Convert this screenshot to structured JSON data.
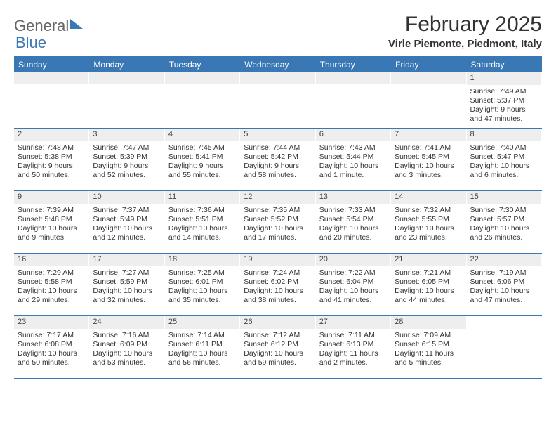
{
  "logo": {
    "part1": "General",
    "part2": "Blue"
  },
  "title": "February 2025",
  "location": "Virle Piemonte, Piedmont, Italy",
  "weekdays": [
    "Sunday",
    "Monday",
    "Tuesday",
    "Wednesday",
    "Thursday",
    "Friday",
    "Saturday"
  ],
  "colors": {
    "accent": "#3a78b5",
    "daynum_bg": "#eeeeee",
    "text": "#333333"
  },
  "weeks": [
    [
      {
        "empty": true
      },
      {
        "empty": true
      },
      {
        "empty": true
      },
      {
        "empty": true
      },
      {
        "empty": true
      },
      {
        "empty": true
      },
      {
        "day": "1",
        "sunrise": "Sunrise: 7:49 AM",
        "sunset": "Sunset: 5:37 PM",
        "daylight1": "Daylight: 9 hours",
        "daylight2": "and 47 minutes."
      }
    ],
    [
      {
        "day": "2",
        "sunrise": "Sunrise: 7:48 AM",
        "sunset": "Sunset: 5:38 PM",
        "daylight1": "Daylight: 9 hours",
        "daylight2": "and 50 minutes."
      },
      {
        "day": "3",
        "sunrise": "Sunrise: 7:47 AM",
        "sunset": "Sunset: 5:39 PM",
        "daylight1": "Daylight: 9 hours",
        "daylight2": "and 52 minutes."
      },
      {
        "day": "4",
        "sunrise": "Sunrise: 7:45 AM",
        "sunset": "Sunset: 5:41 PM",
        "daylight1": "Daylight: 9 hours",
        "daylight2": "and 55 minutes."
      },
      {
        "day": "5",
        "sunrise": "Sunrise: 7:44 AM",
        "sunset": "Sunset: 5:42 PM",
        "daylight1": "Daylight: 9 hours",
        "daylight2": "and 58 minutes."
      },
      {
        "day": "6",
        "sunrise": "Sunrise: 7:43 AM",
        "sunset": "Sunset: 5:44 PM",
        "daylight1": "Daylight: 10 hours",
        "daylight2": "and 1 minute."
      },
      {
        "day": "7",
        "sunrise": "Sunrise: 7:41 AM",
        "sunset": "Sunset: 5:45 PM",
        "daylight1": "Daylight: 10 hours",
        "daylight2": "and 3 minutes."
      },
      {
        "day": "8",
        "sunrise": "Sunrise: 7:40 AM",
        "sunset": "Sunset: 5:47 PM",
        "daylight1": "Daylight: 10 hours",
        "daylight2": "and 6 minutes."
      }
    ],
    [
      {
        "day": "9",
        "sunrise": "Sunrise: 7:39 AM",
        "sunset": "Sunset: 5:48 PM",
        "daylight1": "Daylight: 10 hours",
        "daylight2": "and 9 minutes."
      },
      {
        "day": "10",
        "sunrise": "Sunrise: 7:37 AM",
        "sunset": "Sunset: 5:49 PM",
        "daylight1": "Daylight: 10 hours",
        "daylight2": "and 12 minutes."
      },
      {
        "day": "11",
        "sunrise": "Sunrise: 7:36 AM",
        "sunset": "Sunset: 5:51 PM",
        "daylight1": "Daylight: 10 hours",
        "daylight2": "and 14 minutes."
      },
      {
        "day": "12",
        "sunrise": "Sunrise: 7:35 AM",
        "sunset": "Sunset: 5:52 PM",
        "daylight1": "Daylight: 10 hours",
        "daylight2": "and 17 minutes."
      },
      {
        "day": "13",
        "sunrise": "Sunrise: 7:33 AM",
        "sunset": "Sunset: 5:54 PM",
        "daylight1": "Daylight: 10 hours",
        "daylight2": "and 20 minutes."
      },
      {
        "day": "14",
        "sunrise": "Sunrise: 7:32 AM",
        "sunset": "Sunset: 5:55 PM",
        "daylight1": "Daylight: 10 hours",
        "daylight2": "and 23 minutes."
      },
      {
        "day": "15",
        "sunrise": "Sunrise: 7:30 AM",
        "sunset": "Sunset: 5:57 PM",
        "daylight1": "Daylight: 10 hours",
        "daylight2": "and 26 minutes."
      }
    ],
    [
      {
        "day": "16",
        "sunrise": "Sunrise: 7:29 AM",
        "sunset": "Sunset: 5:58 PM",
        "daylight1": "Daylight: 10 hours",
        "daylight2": "and 29 minutes."
      },
      {
        "day": "17",
        "sunrise": "Sunrise: 7:27 AM",
        "sunset": "Sunset: 5:59 PM",
        "daylight1": "Daylight: 10 hours",
        "daylight2": "and 32 minutes."
      },
      {
        "day": "18",
        "sunrise": "Sunrise: 7:25 AM",
        "sunset": "Sunset: 6:01 PM",
        "daylight1": "Daylight: 10 hours",
        "daylight2": "and 35 minutes."
      },
      {
        "day": "19",
        "sunrise": "Sunrise: 7:24 AM",
        "sunset": "Sunset: 6:02 PM",
        "daylight1": "Daylight: 10 hours",
        "daylight2": "and 38 minutes."
      },
      {
        "day": "20",
        "sunrise": "Sunrise: 7:22 AM",
        "sunset": "Sunset: 6:04 PM",
        "daylight1": "Daylight: 10 hours",
        "daylight2": "and 41 minutes."
      },
      {
        "day": "21",
        "sunrise": "Sunrise: 7:21 AM",
        "sunset": "Sunset: 6:05 PM",
        "daylight1": "Daylight: 10 hours",
        "daylight2": "and 44 minutes."
      },
      {
        "day": "22",
        "sunrise": "Sunrise: 7:19 AM",
        "sunset": "Sunset: 6:06 PM",
        "daylight1": "Daylight: 10 hours",
        "daylight2": "and 47 minutes."
      }
    ],
    [
      {
        "day": "23",
        "sunrise": "Sunrise: 7:17 AM",
        "sunset": "Sunset: 6:08 PM",
        "daylight1": "Daylight: 10 hours",
        "daylight2": "and 50 minutes."
      },
      {
        "day": "24",
        "sunrise": "Sunrise: 7:16 AM",
        "sunset": "Sunset: 6:09 PM",
        "daylight1": "Daylight: 10 hours",
        "daylight2": "and 53 minutes."
      },
      {
        "day": "25",
        "sunrise": "Sunrise: 7:14 AM",
        "sunset": "Sunset: 6:11 PM",
        "daylight1": "Daylight: 10 hours",
        "daylight2": "and 56 minutes."
      },
      {
        "day": "26",
        "sunrise": "Sunrise: 7:12 AM",
        "sunset": "Sunset: 6:12 PM",
        "daylight1": "Daylight: 10 hours",
        "daylight2": "and 59 minutes."
      },
      {
        "day": "27",
        "sunrise": "Sunrise: 7:11 AM",
        "sunset": "Sunset: 6:13 PM",
        "daylight1": "Daylight: 11 hours",
        "daylight2": "and 2 minutes."
      },
      {
        "day": "28",
        "sunrise": "Sunrise: 7:09 AM",
        "sunset": "Sunset: 6:15 PM",
        "daylight1": "Daylight: 11 hours",
        "daylight2": "and 5 minutes."
      },
      {
        "empty": true,
        "noBg": true
      }
    ]
  ]
}
